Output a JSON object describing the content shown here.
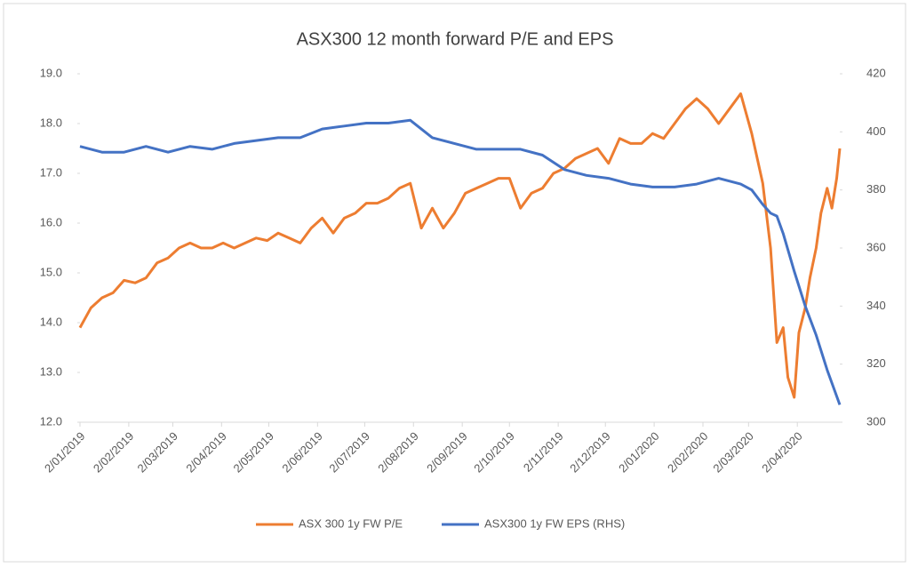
{
  "chart_data": {
    "type": "line",
    "title": "ASX300 12 month forward P/E and EPS",
    "xticks": [
      "2/01/2019",
      "2/02/2019",
      "2/03/2019",
      "2/04/2019",
      "2/05/2019",
      "2/06/2019",
      "2/07/2019",
      "2/08/2019",
      "2/09/2019",
      "2/10/2019",
      "2/11/2019",
      "2/12/2019",
      "2/01/2020",
      "2/02/2020",
      "2/03/2020",
      "2/04/2020"
    ],
    "ylim": [
      12,
      19
    ],
    "yticks": [
      {
        "value": 12,
        "label": "12.0"
      },
      {
        "value": 13,
        "label": "13.0"
      },
      {
        "value": 14,
        "label": "14.0"
      },
      {
        "value": 15,
        "label": "15.0"
      },
      {
        "value": 16,
        "label": "16.0"
      },
      {
        "value": 17,
        "label": "17.0"
      },
      {
        "value": 18,
        "label": "18.0"
      },
      {
        "value": 19,
        "label": "19.0"
      }
    ],
    "y2lim": [
      300,
      420
    ],
    "y2ticks": [
      300,
      320,
      340,
      360,
      380,
      400,
      420
    ],
    "legend": "bottom",
    "series": [
      {
        "name": "ASX 300 1y FW P/E",
        "color": "#ed7d31",
        "x": [
          "2/01/2019",
          "9/01/2019",
          "16/01/2019",
          "23/01/2019",
          "30/01/2019",
          "6/02/2019",
          "13/02/2019",
          "20/02/2019",
          "27/02/2019",
          "6/03/2019",
          "13/03/2019",
          "20/03/2019",
          "27/03/2019",
          "3/04/2019",
          "10/04/2019",
          "17/04/2019",
          "24/04/2019",
          "1/05/2019",
          "8/05/2019",
          "15/05/2019",
          "22/05/2019",
          "29/05/2019",
          "5/06/2019",
          "12/06/2019",
          "19/06/2019",
          "26/06/2019",
          "3/07/2019",
          "10/07/2019",
          "17/07/2019",
          "24/07/2019",
          "31/07/2019",
          "7/08/2019",
          "14/08/2019",
          "21/08/2019",
          "28/08/2019",
          "4/09/2019",
          "11/09/2019",
          "18/09/2019",
          "25/09/2019",
          "2/10/2019",
          "9/10/2019",
          "16/10/2019",
          "23/10/2019",
          "30/10/2019",
          "6/11/2019",
          "13/11/2019",
          "20/11/2019",
          "27/11/2019",
          "4/12/2019",
          "11/12/2019",
          "18/12/2019",
          "25/12/2019",
          "1/01/2020",
          "8/01/2020",
          "15/01/2020",
          "22/01/2020",
          "29/01/2020",
          "5/02/2020",
          "12/02/2020",
          "19/02/2020",
          "26/02/2020",
          "4/03/2020",
          "11/03/2020",
          "16/03/2020",
          "20/03/2020",
          "24/03/2020",
          "27/03/2020",
          "31/03/2020",
          "3/04/2020",
          "7/04/2020",
          "10/04/2020",
          "14/04/2020",
          "17/04/2020",
          "21/04/2020",
          "24/04/2020",
          "27/04/2020",
          "29/04/2020"
        ],
        "values": [
          13.9,
          14.3,
          14.5,
          14.6,
          14.85,
          14.8,
          14.9,
          15.2,
          15.3,
          15.5,
          15.6,
          15.5,
          15.5,
          15.6,
          15.5,
          15.6,
          15.7,
          15.65,
          15.8,
          15.7,
          15.6,
          15.9,
          16.1,
          15.8,
          16.1,
          16.2,
          16.4,
          16.4,
          16.5,
          16.7,
          16.8,
          15.9,
          16.3,
          15.9,
          16.2,
          16.6,
          16.7,
          16.8,
          16.9,
          16.9,
          16.3,
          16.6,
          16.7,
          17.0,
          17.1,
          17.3,
          17.4,
          17.5,
          17.2,
          17.7,
          17.6,
          17.6,
          17.8,
          17.7,
          18.0,
          18.3,
          18.5,
          18.3,
          18.0,
          18.3,
          18.6,
          17.8,
          16.8,
          15.5,
          13.6,
          13.9,
          12.9,
          12.5,
          13.8,
          14.3,
          14.9,
          15.5,
          16.2,
          16.7,
          16.3,
          16.9,
          17.5
        ]
      },
      {
        "name": "ASX300 1y FW EPS (RHS)",
        "color": "#4472c4",
        "axis": "y2",
        "x": [
          "2/01/2019",
          "16/01/2019",
          "30/01/2019",
          "13/02/2019",
          "27/02/2019",
          "13/03/2019",
          "27/03/2019",
          "10/04/2019",
          "24/04/2019",
          "8/05/2019",
          "22/05/2019",
          "5/06/2019",
          "19/06/2019",
          "3/07/2019",
          "17/07/2019",
          "31/07/2019",
          "14/08/2019",
          "28/08/2019",
          "11/09/2019",
          "25/09/2019",
          "9/10/2019",
          "23/10/2019",
          "6/11/2019",
          "20/11/2019",
          "4/12/2019",
          "18/12/2019",
          "1/01/2020",
          "15/01/2020",
          "29/01/2020",
          "12/02/2020",
          "26/02/2020",
          "4/03/2020",
          "11/03/2020",
          "16/03/2020",
          "20/03/2020",
          "24/03/2020",
          "31/03/2020",
          "7/04/2020",
          "14/04/2020",
          "21/04/2020",
          "29/04/2020"
        ],
        "values": [
          395,
          393,
          393,
          395,
          393,
          395,
          394,
          396,
          397,
          398,
          398,
          401,
          402,
          403,
          403,
          404,
          398,
          396,
          394,
          394,
          394,
          392,
          387,
          385,
          384,
          382,
          381,
          381,
          382,
          384,
          382,
          380,
          375,
          372,
          371,
          365,
          352,
          340,
          330,
          318,
          306
        ]
      }
    ]
  }
}
